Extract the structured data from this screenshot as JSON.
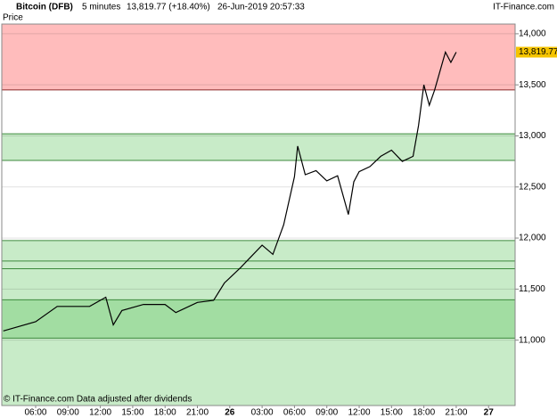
{
  "chart_data": {
    "type": "line",
    "header": {
      "instrument": "Bitcoin (DFB)",
      "period": "5 minutes",
      "quote": "13,819.77 (+18.40%)",
      "timestamp": "26-Jun-2019 20:57:33",
      "source": "IT-Finance.com"
    },
    "panel_label": "Price",
    "footer": "© IT-Finance.com  Data adjusted after dividends",
    "xlim": [
      2.86,
      50.46
    ],
    "xticks": [
      {
        "value": 6,
        "label": "06:00"
      },
      {
        "value": 9,
        "label": "09:00"
      },
      {
        "value": 12,
        "label": "12:00"
      },
      {
        "value": 15,
        "label": "15:00"
      },
      {
        "value": 18,
        "label": "18:00"
      },
      {
        "value": 21,
        "label": "21:00"
      },
      {
        "value": 24,
        "label": "26"
      },
      {
        "value": 27,
        "label": "03:00"
      },
      {
        "value": 30,
        "label": "06:00"
      },
      {
        "value": 33,
        "label": "09:00"
      },
      {
        "value": 36,
        "label": "12:00"
      },
      {
        "value": 39,
        "label": "15:00"
      },
      {
        "value": 42,
        "label": "18:00"
      },
      {
        "value": 45,
        "label": "21:00"
      },
      {
        "value": 48,
        "label": "27"
      }
    ],
    "bold_xticks": [
      6,
      14
    ],
    "ylim": [
      10360,
      14095
    ],
    "yticks": [
      {
        "value": 11000,
        "label": "11,000"
      },
      {
        "value": 11500,
        "label": "11,500"
      },
      {
        "value": 12000,
        "label": "12,000"
      },
      {
        "value": 12500,
        "label": "12,500"
      },
      {
        "value": 13000,
        "label": "13,000"
      },
      {
        "value": 13500,
        "label": "13,500"
      },
      {
        "value": 14000,
        "label": "14,000"
      }
    ],
    "grid": true,
    "bands": [
      {
        "from": 13450,
        "to": 14095,
        "color": "#ffbcbc"
      },
      {
        "from": 12760,
        "to": 13020,
        "color": "#c8ebc8"
      },
      {
        "from": 11395,
        "to": 11975,
        "color": "#c8ebc8"
      },
      {
        "from": 11020,
        "to": 11395,
        "color": "#a2dda2"
      },
      {
        "from": 10360,
        "to": 11020,
        "color": "#c8ebc8"
      }
    ],
    "levels": [
      {
        "value": 13450,
        "color": "#8b2a2a"
      },
      {
        "value": 13020,
        "color": "#3c8a3c"
      },
      {
        "value": 12760,
        "color": "#3c8a3c"
      },
      {
        "value": 11975,
        "color": "#3c8a3c"
      },
      {
        "value": 11775,
        "color": "#3c8a3c"
      },
      {
        "value": 11700,
        "color": "#3c8a3c"
      },
      {
        "value": 11395,
        "color": "#3c8a3c"
      },
      {
        "value": 11020,
        "color": "#3c8a3c"
      }
    ],
    "last": {
      "value": 13819.77,
      "label": "13,819.77",
      "color": "#f5c400"
    },
    "series": [
      {
        "name": "Price",
        "color": "#000000",
        "x": [
          3,
          6,
          8,
          9,
          11,
          12.5,
          13.2,
          14,
          16,
          18,
          19,
          21,
          22.5,
          23.5,
          25,
          26,
          27,
          28,
          29,
          30,
          30.3,
          31,
          32,
          33,
          34,
          35,
          35.5,
          36,
          37,
          38,
          39,
          40,
          41,
          41.5,
          42,
          42.5,
          43,
          44,
          44.5,
          45
        ],
        "values": [
          11090,
          11180,
          11330,
          11330,
          11330,
          11420,
          11150,
          11290,
          11350,
          11350,
          11270,
          11370,
          11390,
          11560,
          11710,
          11820,
          11930,
          11840,
          12130,
          12600,
          12900,
          12620,
          12660,
          12560,
          12610,
          12230,
          12550,
          12650,
          12700,
          12800,
          12860,
          12750,
          12800,
          13100,
          13500,
          13300,
          13450,
          13820,
          13720,
          13820
        ]
      }
    ]
  }
}
